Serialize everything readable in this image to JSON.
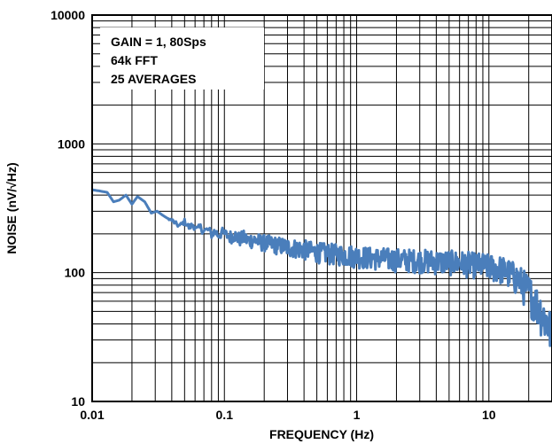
{
  "chart_data": {
    "type": "line",
    "title": "",
    "xlabel": "FREQUENCY (Hz)",
    "ylabel": "NOISE (nV/√Hz)",
    "x_scale": "log",
    "y_scale": "log",
    "xlim": [
      0.01,
      30
    ],
    "ylim": [
      10,
      10000
    ],
    "grid": true,
    "x_ticks": [
      {
        "value": 0.01,
        "label": "0.01"
      },
      {
        "value": 0.1,
        "label": "0.1"
      },
      {
        "value": 1,
        "label": "1"
      },
      {
        "value": 10,
        "label": "10"
      }
    ],
    "y_ticks": [
      {
        "value": 10,
        "label": "10"
      },
      {
        "value": 100,
        "label": "100"
      },
      {
        "value": 1000,
        "label": "1000"
      },
      {
        "value": 10000,
        "label": "10000"
      }
    ],
    "annotation_lines": [
      "GAIN = 1, 80Sps",
      "64k FFT",
      "25 AVERAGES"
    ],
    "series": [
      {
        "color": "#4A7EBB",
        "x": [
          0.01,
          0.0115,
          0.013,
          0.0145,
          0.016,
          0.018,
          0.02,
          0.022,
          0.025,
          0.028,
          0.031,
          0.034,
          0.037,
          0.04,
          0.043,
          0.046,
          0.05,
          0.054,
          0.058,
          0.062,
          0.066,
          0.07,
          0.075,
          0.08,
          0.085,
          0.09,
          0.095,
          0.1,
          0.11,
          0.12,
          0.13,
          0.14,
          0.15,
          0.17,
          0.19,
          0.21,
          0.24,
          0.27,
          0.3,
          0.35,
          0.4,
          0.45,
          0.5,
          0.6,
          0.7,
          0.8,
          0.9,
          1,
          1.2,
          1.4,
          1.6,
          1.8,
          2,
          2.5,
          3,
          3.5,
          4,
          4.5,
          5,
          6,
          7,
          8,
          9,
          10,
          11,
          12,
          13,
          14,
          15,
          16,
          17,
          18,
          19,
          20,
          21,
          22,
          23,
          24,
          25,
          26,
          27,
          28,
          29,
          30
        ],
        "y": [
          440,
          430,
          420,
          355,
          365,
          400,
          340,
          390,
          355,
          290,
          300,
          280,
          265,
          255,
          240,
          230,
          250,
          225,
          235,
          215,
          225,
          210,
          215,
          200,
          210,
          195,
          205,
          200,
          190,
          195,
          182,
          188,
          178,
          180,
          172,
          170,
          165,
          162,
          158,
          155,
          152,
          148,
          145,
          142,
          140,
          138,
          137,
          135,
          132,
          130,
          130,
          128,
          127,
          126,
          125,
          124,
          123,
          122,
          122,
          120,
          118,
          116,
          114,
          112,
          110,
          108,
          105,
          100,
          96,
          92,
          88,
          82,
          77,
          72,
          67,
          62,
          58,
          54,
          50,
          46,
          43,
          40,
          37,
          35
        ],
        "noise_envelope_fraction": [
          0.0,
          0.0,
          0.0,
          0.0,
          0.0,
          0.0,
          0.0,
          0.0,
          0.0,
          0.0,
          0.0,
          0.0,
          0.0,
          0.04,
          0.04,
          0.05,
          0.05,
          0.06,
          0.06,
          0.07,
          0.07,
          0.08,
          0.08,
          0.09,
          0.09,
          0.1,
          0.1,
          0.1,
          0.12,
          0.12,
          0.13,
          0.13,
          0.14,
          0.14,
          0.15,
          0.15,
          0.16,
          0.16,
          0.17,
          0.17,
          0.18,
          0.18,
          0.18,
          0.19,
          0.19,
          0.19,
          0.2,
          0.2,
          0.2,
          0.2,
          0.2,
          0.21,
          0.21,
          0.21,
          0.21,
          0.22,
          0.22,
          0.22,
          0.22,
          0.23,
          0.23,
          0.23,
          0.24,
          0.24,
          0.25,
          0.25,
          0.26,
          0.27,
          0.28,
          0.29,
          0.3,
          0.31,
          0.32,
          0.33,
          0.34,
          0.35,
          0.36,
          0.37,
          0.38,
          0.39,
          0.4,
          0.4,
          0.4,
          0.4
        ]
      }
    ]
  }
}
